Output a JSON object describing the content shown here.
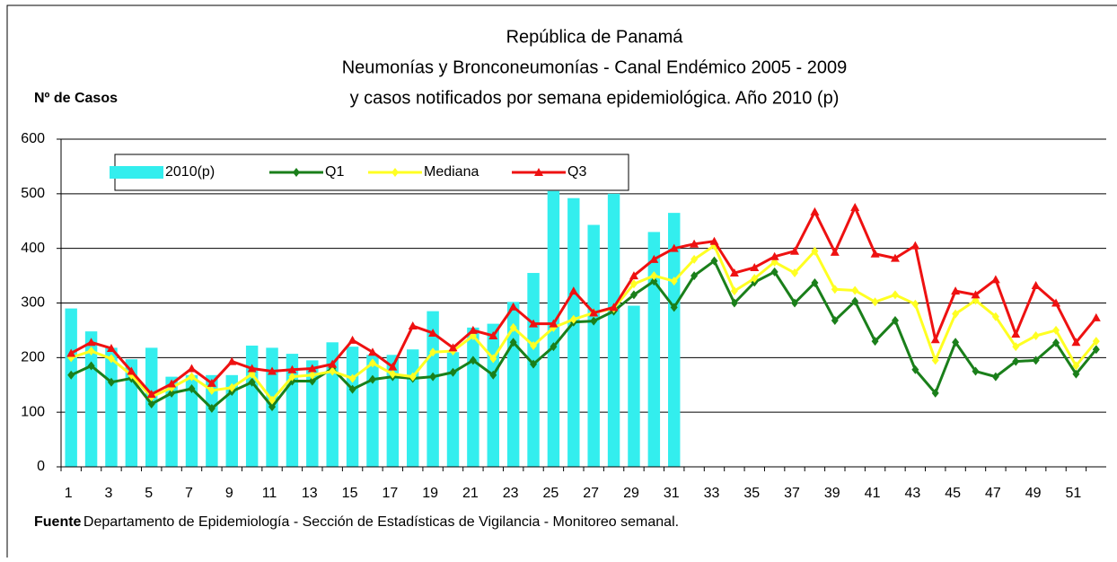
{
  "chart_data": {
    "type": "combo",
    "title": "República de Panamá",
    "subtitle": "Neumonías y Bronconeumonías - Canal Endémico 2005 - 2009",
    "subtitle2": "y casos notificados por semana epidemiológica. Año 2010 (p)",
    "y_label": "Nº de Casos",
    "source_label": "Fuente",
    "source_text": ": Departamento de Epidemiología - Sección de Estadísticas de Vigilancia - Monitoreo semanal.",
    "categories": [
      "1",
      null,
      "3",
      null,
      "5",
      null,
      "7",
      null,
      "9",
      null,
      "11",
      null,
      "13",
      null,
      "15",
      null,
      "17",
      null,
      "19",
      null,
      "21",
      null,
      "23",
      null,
      "25",
      null,
      "27",
      null,
      "29",
      null,
      "31",
      null,
      "33",
      null,
      "35",
      null,
      "37",
      null,
      "39",
      null,
      "41",
      null,
      "43",
      null,
      "45",
      null,
      "47",
      null,
      "49",
      null,
      "51",
      null
    ],
    "ylim": [
      0,
      600
    ],
    "yticks": [
      0,
      100,
      200,
      300,
      400,
      500,
      600
    ],
    "grid": true,
    "series": [
      {
        "name": "2010(p)",
        "type": "bar",
        "color": "#33eeee",
        "values": [
          290,
          248,
          218,
          197,
          218,
          165,
          168,
          168,
          168,
          222,
          218,
          207,
          195,
          228,
          220,
          205,
          205,
          215,
          285,
          210,
          255,
          262,
          302,
          355,
          505,
          492,
          443,
          500,
          295,
          430,
          465,
          null,
          null,
          null,
          null,
          null,
          null,
          null,
          null,
          null,
          null,
          null,
          null,
          null,
          null,
          null,
          null,
          null,
          null,
          null,
          null,
          null
        ]
      },
      {
        "name": "Q1",
        "type": "line",
        "marker": "diamond",
        "color": "#1a7f1a",
        "values": [
          168,
          185,
          155,
          162,
          115,
          135,
          143,
          107,
          138,
          155,
          110,
          157,
          157,
          180,
          142,
          160,
          165,
          162,
          165,
          173,
          195,
          168,
          228,
          188,
          220,
          265,
          267,
          285,
          315,
          340,
          292,
          350,
          377,
          300,
          338,
          357,
          300,
          337,
          268,
          303,
          230,
          268,
          178,
          135,
          228,
          175,
          165,
          193,
          195,
          227,
          170,
          215
        ]
      },
      {
        "name": "Mediana",
        "type": "line",
        "marker": "diamond",
        "color": "#ffff22",
        "values": [
          200,
          212,
          198,
          168,
          128,
          145,
          165,
          140,
          145,
          170,
          122,
          165,
          168,
          175,
          162,
          190,
          170,
          165,
          210,
          212,
          240,
          198,
          255,
          222,
          255,
          270,
          282,
          290,
          335,
          350,
          340,
          380,
          405,
          322,
          345,
          375,
          355,
          395,
          325,
          323,
          302,
          315,
          298,
          195,
          280,
          305,
          275,
          220,
          240,
          250,
          185,
          230
        ]
      },
      {
        "name": "Q3",
        "type": "line",
        "marker": "triangle",
        "color": "#ee1111",
        "values": [
          208,
          228,
          217,
          175,
          133,
          152,
          180,
          153,
          193,
          180,
          175,
          178,
          180,
          188,
          232,
          210,
          183,
          258,
          245,
          218,
          250,
          240,
          293,
          262,
          262,
          322,
          282,
          292,
          350,
          380,
          400,
          408,
          413,
          355,
          365,
          385,
          395,
          467,
          393,
          475,
          390,
          382,
          405,
          233,
          322,
          315,
          343,
          243,
          332,
          300,
          228,
          273
        ]
      }
    ]
  }
}
